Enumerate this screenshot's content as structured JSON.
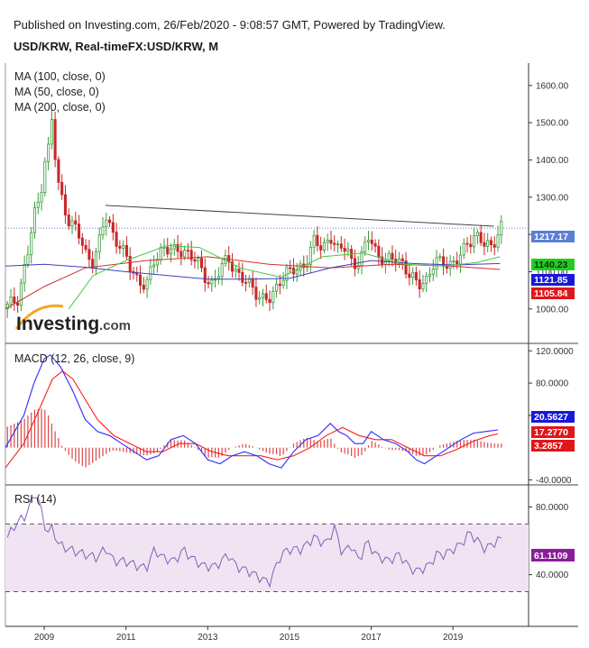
{
  "header": {
    "published": "Published on Investing.com, 26/Feb/2020 - 9:08:57 GMT, Powered by TradingView.",
    "symbol": "USD/KRW, Real-timeFX:USD/KRW, M"
  },
  "logo": {
    "text": "Investing",
    "suffix": ".com"
  },
  "colors": {
    "up": "#3c9a3c",
    "down": "#c62828",
    "ma100": "#d32f2f",
    "ma50": "#3f3fbf",
    "ma200": "#46c646",
    "trend": "#444444",
    "macd": "#2b2bff",
    "signal": "#ff1c1c",
    "rsi": "#8a5cb8",
    "rsi_band": "#f0e4f2",
    "last_price": "#5b7fd6",
    "tag_green": "#22cc22",
    "tag_blue": "#1818d8",
    "tag_red": "#e0161a",
    "tag_purple": "#8a1d9a"
  },
  "chart_data": [
    {
      "type": "candlestick",
      "title": "USD/KRW, Real-timeFX:USD/KRW, M",
      "x_ticks": [
        "2009",
        "2011",
        "2013",
        "2015",
        "2017",
        "2019"
      ],
      "y_ticks": [
        1000,
        1100,
        1200,
        1300,
        1400,
        1500,
        1600
      ],
      "y_tick_labels": [
        "1000.00",
        "1100.00",
        "1200.00",
        "1300.00",
        "1400.00",
        "1500.00",
        "1600.00"
      ],
      "ylim": [
        910,
        1660
      ],
      "x_range": [
        2008.05,
        2020.85
      ],
      "legend": [
        "MA (100, close, 0)",
        "MA (50, close, 0)",
        "MA (200, close, 0)"
      ],
      "last_values": {
        "price": "1217.17",
        "ma200": "1140.23",
        "ma50": "1121.85",
        "ma100": "1105.84"
      },
      "trendline": {
        "x": [
          2010.5,
          2020.0
        ],
        "y": [
          1278,
          1222
        ]
      },
      "close_anchors": [
        [
          2008.05,
          1000
        ],
        [
          2008.35,
          1030
        ],
        [
          2008.6,
          1150
        ],
        [
          2008.75,
          1250
        ],
        [
          2008.9,
          1300
        ],
        [
          2009.0,
          1400
        ],
        [
          2009.1,
          1430
        ],
        [
          2009.2,
          1520
        ],
        [
          2009.3,
          1350
        ],
        [
          2009.45,
          1290
        ],
        [
          2009.6,
          1240
        ],
        [
          2009.8,
          1210
        ],
        [
          2010.0,
          1150
        ],
        [
          2010.2,
          1130
        ],
        [
          2010.35,
          1180
        ],
        [
          2010.5,
          1250
        ],
        [
          2010.7,
          1200
        ],
        [
          2010.9,
          1160
        ],
        [
          2011.1,
          1110
        ],
        [
          2011.3,
          1080
        ],
        [
          2011.5,
          1060
        ],
        [
          2011.7,
          1130
        ],
        [
          2011.9,
          1170
        ],
        [
          2012.2,
          1150
        ],
        [
          2012.45,
          1160
        ],
        [
          2012.7,
          1130
        ],
        [
          2012.9,
          1090
        ],
        [
          2013.1,
          1070
        ],
        [
          2013.3,
          1100
        ],
        [
          2013.5,
          1140
        ],
        [
          2013.7,
          1100
        ],
        [
          2013.9,
          1070
        ],
        [
          2014.1,
          1060
        ],
        [
          2014.3,
          1030
        ],
        [
          2014.55,
          1020
        ],
        [
          2014.75,
          1080
        ],
        [
          2014.95,
          1100
        ],
        [
          2015.2,
          1100
        ],
        [
          2015.4,
          1130
        ],
        [
          2015.6,
          1180
        ],
        [
          2015.8,
          1160
        ],
        [
          2016.0,
          1200
        ],
        [
          2016.2,
          1150
        ],
        [
          2016.4,
          1170
        ],
        [
          2016.55,
          1120
        ],
        [
          2016.75,
          1130
        ],
        [
          2016.95,
          1200
        ],
        [
          2017.15,
          1150
        ],
        [
          2017.35,
          1120
        ],
        [
          2017.55,
          1140
        ],
        [
          2017.75,
          1130
        ],
        [
          2017.95,
          1080
        ],
        [
          2018.15,
          1070
        ],
        [
          2018.35,
          1080
        ],
        [
          2018.55,
          1120
        ],
        [
          2018.75,
          1130
        ],
        [
          2018.95,
          1120
        ],
        [
          2019.15,
          1130
        ],
        [
          2019.35,
          1180
        ],
        [
          2019.55,
          1200
        ],
        [
          2019.75,
          1170
        ],
        [
          2019.95,
          1170
        ],
        [
          2020.15,
          1220
        ]
      ],
      "ma100": [
        [
          2008.05,
          1000
        ],
        [
          2009.0,
          1060
        ],
        [
          2010.0,
          1110
        ],
        [
          2011.5,
          1130
        ],
        [
          2013.0,
          1140
        ],
        [
          2014.5,
          1120
        ],
        [
          2016.0,
          1110
        ],
        [
          2017.5,
          1120
        ],
        [
          2019.0,
          1115
        ],
        [
          2020.15,
          1106
        ]
      ],
      "ma50": [
        [
          2008.05,
          1115
        ],
        [
          2009.0,
          1120
        ],
        [
          2010.0,
          1112
        ],
        [
          2011.0,
          1100
        ],
        [
          2012.0,
          1090
        ],
        [
          2013.0,
          1080
        ],
        [
          2014.0,
          1080
        ],
        [
          2015.0,
          1082
        ],
        [
          2016.0,
          1110
        ],
        [
          2017.0,
          1130
        ],
        [
          2018.0,
          1122
        ],
        [
          2019.0,
          1118
        ],
        [
          2020.15,
          1122
        ]
      ],
      "ma200": [
        [
          2009.6,
          1000
        ],
        [
          2010.2,
          1090
        ],
        [
          2011.0,
          1130
        ],
        [
          2012.0,
          1170
        ],
        [
          2012.8,
          1165
        ],
        [
          2013.8,
          1110
        ],
        [
          2014.8,
          1085
        ],
        [
          2015.8,
          1140
        ],
        [
          2016.8,
          1150
        ],
        [
          2017.8,
          1120
        ],
        [
          2018.8,
          1115
        ],
        [
          2019.6,
          1125
        ],
        [
          2020.15,
          1140
        ]
      ]
    },
    {
      "type": "line",
      "title": "MACD (12, 26, close, 9)",
      "y_ticks": [
        -40,
        0,
        40,
        80,
        120
      ],
      "y_tick_labels": [
        "-40.0000",
        "",
        "40.0000",
        "80.0000",
        "120.0000"
      ],
      "ylim": [
        -45,
        127
      ],
      "x_range": [
        2008.05,
        2020.85
      ],
      "last_values": {
        "macd": "20.5627",
        "signal": "17.2770",
        "hist": "3.2857"
      },
      "series": [
        {
          "values": [
            [
              2008.05,
              0
            ],
            [
              2008.5,
              40
            ],
            [
              2008.75,
              80
            ],
            [
              2009.0,
              110
            ],
            [
              2009.15,
              115
            ],
            [
              2009.4,
              100
            ],
            [
              2009.7,
              70
            ],
            [
              2010.0,
              35
            ],
            [
              2010.3,
              20
            ],
            [
              2010.6,
              15
            ],
            [
              2010.9,
              5
            ],
            [
              2011.2,
              -5
            ],
            [
              2011.5,
              -15
            ],
            [
              2011.8,
              -10
            ],
            [
              2012.1,
              10
            ],
            [
              2012.4,
              15
            ],
            [
              2012.7,
              5
            ],
            [
              2013.0,
              -15
            ],
            [
              2013.3,
              -20
            ],
            [
              2013.6,
              -10
            ],
            [
              2013.9,
              -5
            ],
            [
              2014.2,
              -10
            ],
            [
              2014.5,
              -20
            ],
            [
              2014.8,
              -25
            ],
            [
              2015.1,
              -5
            ],
            [
              2015.4,
              10
            ],
            [
              2015.7,
              15
            ],
            [
              2016.0,
              30
            ],
            [
              2016.2,
              20
            ],
            [
              2016.4,
              15
            ],
            [
              2016.6,
              5
            ],
            [
              2016.8,
              5
            ],
            [
              2017.0,
              20
            ],
            [
              2017.3,
              10
            ],
            [
              2017.6,
              5
            ],
            [
              2017.9,
              -5
            ],
            [
              2018.1,
              -15
            ],
            [
              2018.3,
              -20
            ],
            [
              2018.6,
              -10
            ],
            [
              2018.9,
              0
            ],
            [
              2019.2,
              10
            ],
            [
              2019.5,
              18
            ],
            [
              2019.8,
              20
            ],
            [
              2020.1,
              22
            ]
          ]
        },
        {
          "values": [
            [
              2008.05,
              -25
            ],
            [
              2008.5,
              5
            ],
            [
              2008.9,
              50
            ],
            [
              2009.2,
              85
            ],
            [
              2009.45,
              95
            ],
            [
              2009.7,
              85
            ],
            [
              2010.0,
              60
            ],
            [
              2010.3,
              35
            ],
            [
              2010.7,
              15
            ],
            [
              2011.1,
              5
            ],
            [
              2011.5,
              -5
            ],
            [
              2011.9,
              -5
            ],
            [
              2012.3,
              5
            ],
            [
              2012.7,
              5
            ],
            [
              2013.1,
              -5
            ],
            [
              2013.5,
              -10
            ],
            [
              2013.9,
              -10
            ],
            [
              2014.3,
              -10
            ],
            [
              2014.7,
              -15
            ],
            [
              2015.1,
              -10
            ],
            [
              2015.5,
              0
            ],
            [
              2015.9,
              15
            ],
            [
              2016.3,
              25
            ],
            [
              2016.7,
              15
            ],
            [
              2017.1,
              10
            ],
            [
              2017.5,
              10
            ],
            [
              2017.9,
              0
            ],
            [
              2018.3,
              -10
            ],
            [
              2018.7,
              -10
            ],
            [
              2019.1,
              -2
            ],
            [
              2019.5,
              8
            ],
            [
              2019.9,
              15
            ],
            [
              2020.1,
              17
            ]
          ]
        }
      ]
    },
    {
      "type": "line",
      "title": "RSI (14)",
      "y_ticks": [
        40,
        80
      ],
      "y_tick_labels": [
        "40.0000",
        "80.0000"
      ],
      "ylim": [
        10,
        92
      ],
      "band": [
        30,
        70
      ],
      "x_range": [
        2008.05,
        2020.85
      ],
      "last_values": {
        "rsi": "61.1109"
      },
      "values": [
        [
          2008.05,
          60
        ],
        [
          2008.3,
          70
        ],
        [
          2008.55,
          75
        ],
        [
          2008.8,
          90
        ],
        [
          2009.0,
          70
        ],
        [
          2009.1,
          65
        ],
        [
          2009.2,
          68
        ],
        [
          2009.35,
          58
        ],
        [
          2009.6,
          55
        ],
        [
          2010.0,
          52
        ],
        [
          2010.3,
          50
        ],
        [
          2010.5,
          56
        ],
        [
          2010.7,
          48
        ],
        [
          2011.0,
          48
        ],
        [
          2011.3,
          45
        ],
        [
          2011.5,
          44
        ],
        [
          2011.7,
          55
        ],
        [
          2011.9,
          50
        ],
        [
          2012.2,
          48
        ],
        [
          2012.4,
          55
        ],
        [
          2012.6,
          50
        ],
        [
          2012.9,
          45
        ],
        [
          2013.2,
          45
        ],
        [
          2013.5,
          52
        ],
        [
          2013.7,
          45
        ],
        [
          2014.0,
          42
        ],
        [
          2014.3,
          38
        ],
        [
          2014.5,
          35
        ],
        [
          2014.8,
          52
        ],
        [
          2015.0,
          55
        ],
        [
          2015.3,
          55
        ],
        [
          2015.6,
          62
        ],
        [
          2015.9,
          58
        ],
        [
          2016.1,
          68
        ],
        [
          2016.3,
          52
        ],
        [
          2016.5,
          58
        ],
        [
          2016.7,
          48
        ],
        [
          2016.9,
          60
        ],
        [
          2017.1,
          52
        ],
        [
          2017.4,
          48
        ],
        [
          2017.7,
          52
        ],
        [
          2017.9,
          45
        ],
        [
          2018.1,
          42
        ],
        [
          2018.4,
          45
        ],
        [
          2018.6,
          52
        ],
        [
          2018.8,
          52
        ],
        [
          2019.0,
          55
        ],
        [
          2019.2,
          58
        ],
        [
          2019.4,
          65
        ],
        [
          2019.6,
          60
        ],
        [
          2019.8,
          55
        ],
        [
          2019.95,
          58
        ],
        [
          2020.15,
          61
        ]
      ]
    }
  ]
}
